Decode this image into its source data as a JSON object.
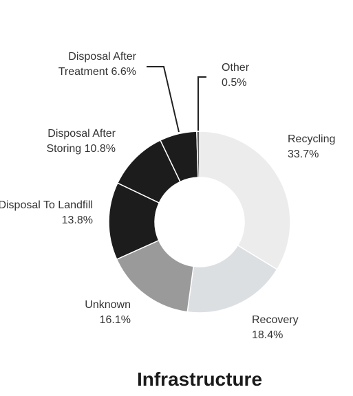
{
  "chart_data": {
    "type": "donut",
    "title": "Infrastructure",
    "categories": [
      "Recycling",
      "Recovery",
      "Unknown",
      "Disposal To Landfill",
      "Disposal After Storing",
      "Disposal After Treatment",
      "Other"
    ],
    "values": [
      33.7,
      18.4,
      16.1,
      13.8,
      10.8,
      6.6,
      0.5
    ],
    "value_labels": [
      "33.7%",
      "18.4%",
      "16.1%",
      "13.8%",
      "10.8%",
      "6.6%",
      "0.5%"
    ],
    "colors": [
      "#ececec",
      "#dcdfe2",
      "#9a9a9a",
      "#1c1c1c",
      "#1c1c1c",
      "#1c1c1c",
      "#5a5a5a"
    ]
  }
}
